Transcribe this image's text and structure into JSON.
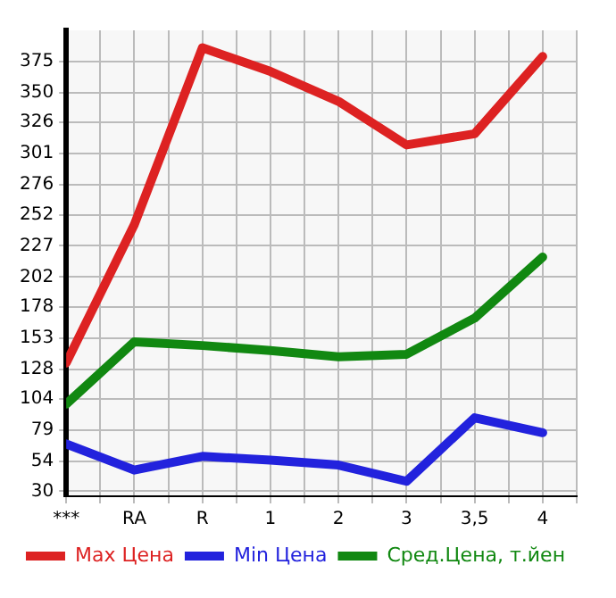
{
  "chart_data": {
    "type": "line",
    "categories": [
      "***",
      "RA",
      "R",
      "1",
      "2",
      "3",
      "3,5",
      "4"
    ],
    "series": [
      {
        "name": "Max Цена",
        "color": "#dd2222",
        "values": [
          133,
          244,
          386,
          367,
          343,
          308,
          317,
          379
        ]
      },
      {
        "name": "Min Цена",
        "color": "#2222dd",
        "values": [
          68,
          47,
          58,
          55,
          51,
          38,
          89,
          77
        ]
      },
      {
        "name": "Сред.Цена, т.йен",
        "color": "#118811",
        "values": [
          100,
          150,
          147,
          143,
          138,
          140,
          169,
          218
        ]
      }
    ],
    "ylim": [
      26,
      400
    ],
    "yticks": [
      30,
      54,
      79,
      104,
      128,
      153,
      178,
      202,
      227,
      252,
      276,
      301,
      326,
      350,
      375
    ],
    "grid": true,
    "legend": "bottom",
    "marker": "none",
    "line_style": "solid"
  }
}
